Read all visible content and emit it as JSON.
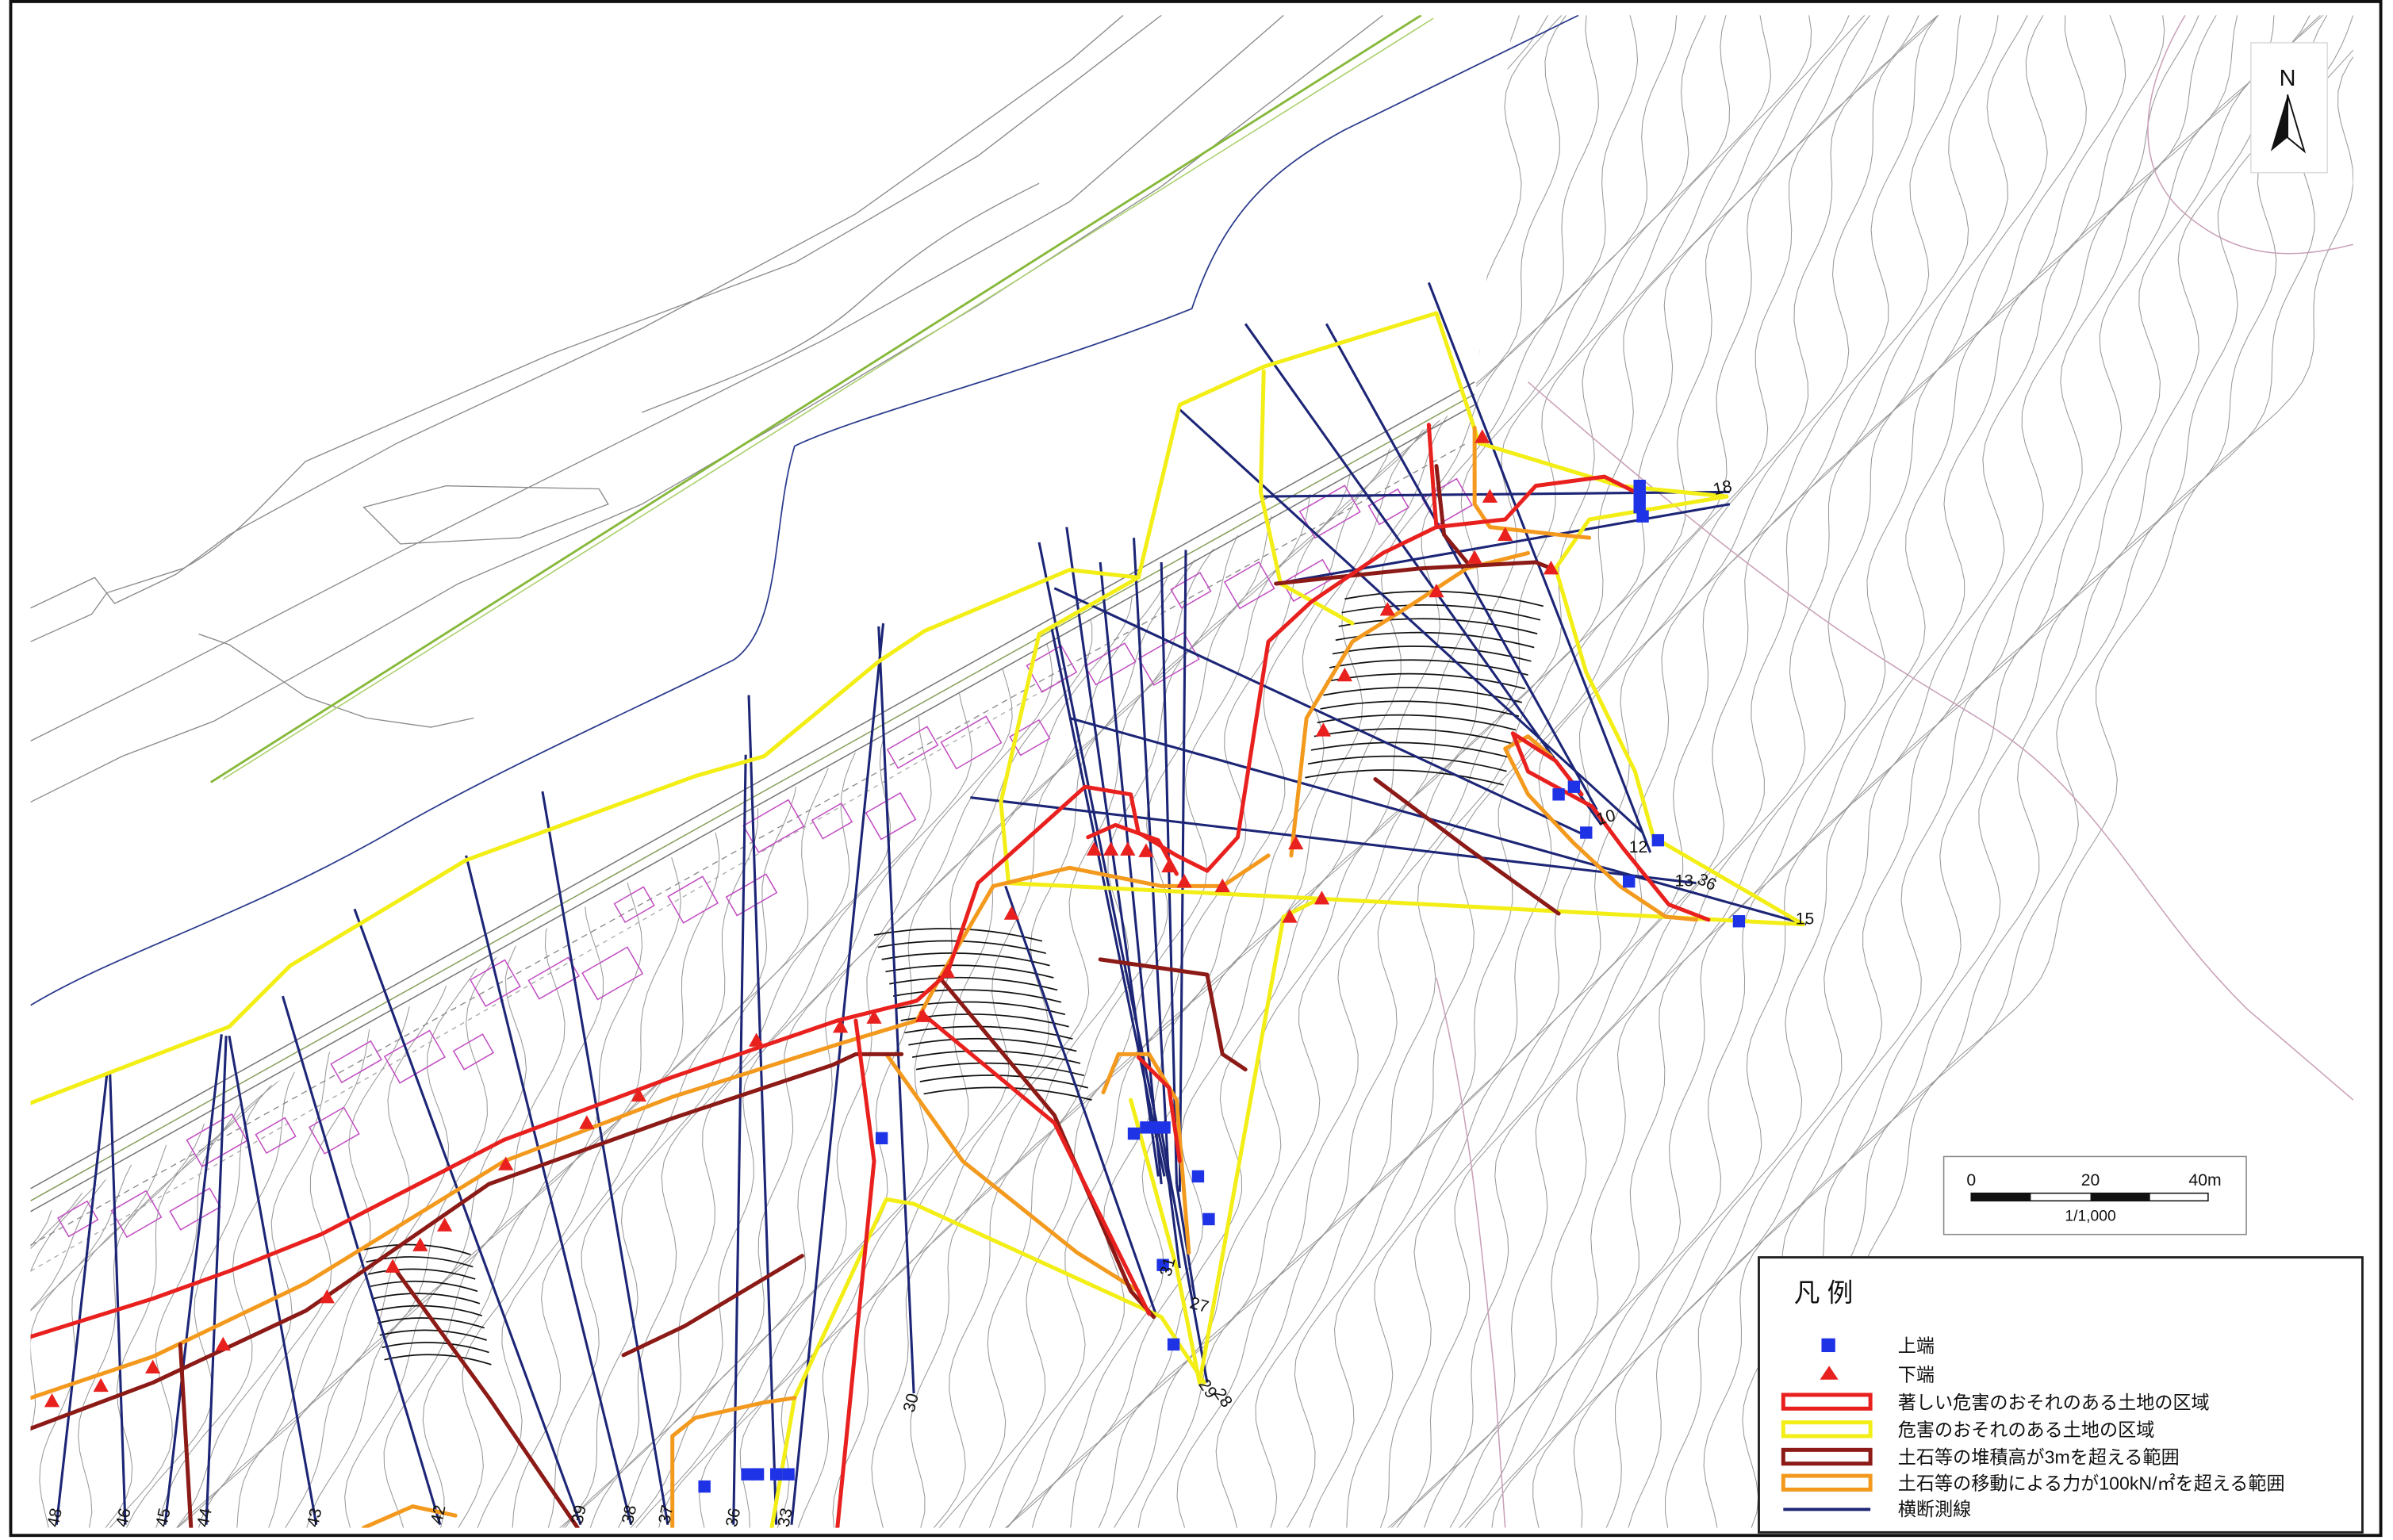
{
  "north_arrow": {
    "label": "N"
  },
  "scale_bar": {
    "tick_0": "0",
    "tick_20": "20",
    "tick_40": "40m",
    "ratio": "1/1,000"
  },
  "legend": {
    "title": "凡 例",
    "items": [
      {
        "label": "上端",
        "symbol": "square",
        "color": "#1f33e6"
      },
      {
        "label": "下端",
        "symbol": "triangle",
        "color": "#e8211f"
      },
      {
        "label": "著しい危害のおそれのある土地の区域",
        "symbol": "outlined-band",
        "color": "#e8211f"
      },
      {
        "label": "危害のおそれのある土地の区域",
        "symbol": "outlined-band",
        "color": "#f2ee16"
      },
      {
        "label": "土石等の堆積高が3mを超える範囲",
        "symbol": "outlined-band",
        "color": "#8c1a16"
      },
      {
        "label": "土石等の移動による力が100kN/㎡を超える範囲",
        "symbol": "outlined-band",
        "color": "#f39a1e"
      },
      {
        "label": "横断測線",
        "symbol": "line",
        "color": "#1c2576"
      }
    ]
  },
  "survey_line_labels": [
    "18",
    "10",
    "12",
    "13",
    "36",
    "15",
    "27",
    "29",
    "28",
    "31",
    "30",
    "48",
    "46",
    "45",
    "44",
    "43",
    "42",
    "39",
    "38",
    "37",
    "36",
    "33"
  ]
}
